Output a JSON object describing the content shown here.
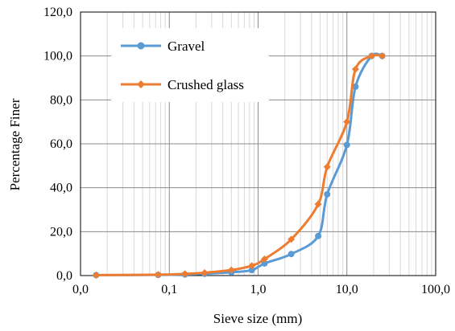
{
  "chart_data": {
    "type": "line",
    "x_scale": "log",
    "xlabel": "Sieve size (mm)",
    "ylabel": "Percentage Finer",
    "xlim": [
      0.01,
      100
    ],
    "ylim": [
      0,
      120
    ],
    "x_ticks": [
      {
        "value": 0.01,
        "label": "0,0"
      },
      {
        "value": 0.1,
        "label": "0,1"
      },
      {
        "value": 1,
        "label": "1,0"
      },
      {
        "value": 10,
        "label": "10,0"
      },
      {
        "value": 100,
        "label": "100,0"
      }
    ],
    "y_ticks": [
      {
        "value": 0,
        "label": "0,0"
      },
      {
        "value": 20,
        "label": "20,0"
      },
      {
        "value": 40,
        "label": "40,0"
      },
      {
        "value": 60,
        "label": "60,0"
      },
      {
        "value": 80,
        "label": "80,0"
      },
      {
        "value": 100,
        "label": "100,0"
      },
      {
        "value": 120,
        "label": "120,0"
      }
    ],
    "grid": true,
    "legend_position": "top-left",
    "series": [
      {
        "name": "Gravel",
        "color": "#5B9BD5",
        "marker": "circle",
        "x": [
          0.015,
          0.075,
          0.15,
          0.25,
          0.5,
          0.85,
          1.18,
          2.36,
          4.75,
          6.0,
          10.0,
          12.5,
          19.0,
          25.0
        ],
        "y": [
          0.2,
          0.3,
          0.5,
          0.8,
          1.5,
          2.5,
          5.5,
          9.8,
          18.0,
          37.0,
          59.5,
          86.0,
          100.0,
          100.0
        ]
      },
      {
        "name": "Crushed glass",
        "color": "#ED7D31",
        "marker": "diamond",
        "x": [
          0.015,
          0.075,
          0.15,
          0.25,
          0.5,
          0.85,
          1.18,
          2.36,
          4.75,
          6.0,
          10.0,
          12.5,
          19.0,
          25.0
        ],
        "y": [
          0.2,
          0.4,
          0.8,
          1.3,
          2.5,
          4.5,
          7.5,
          16.5,
          32.5,
          49.5,
          70.0,
          94.0,
          100.0,
          100.0
        ]
      }
    ]
  }
}
